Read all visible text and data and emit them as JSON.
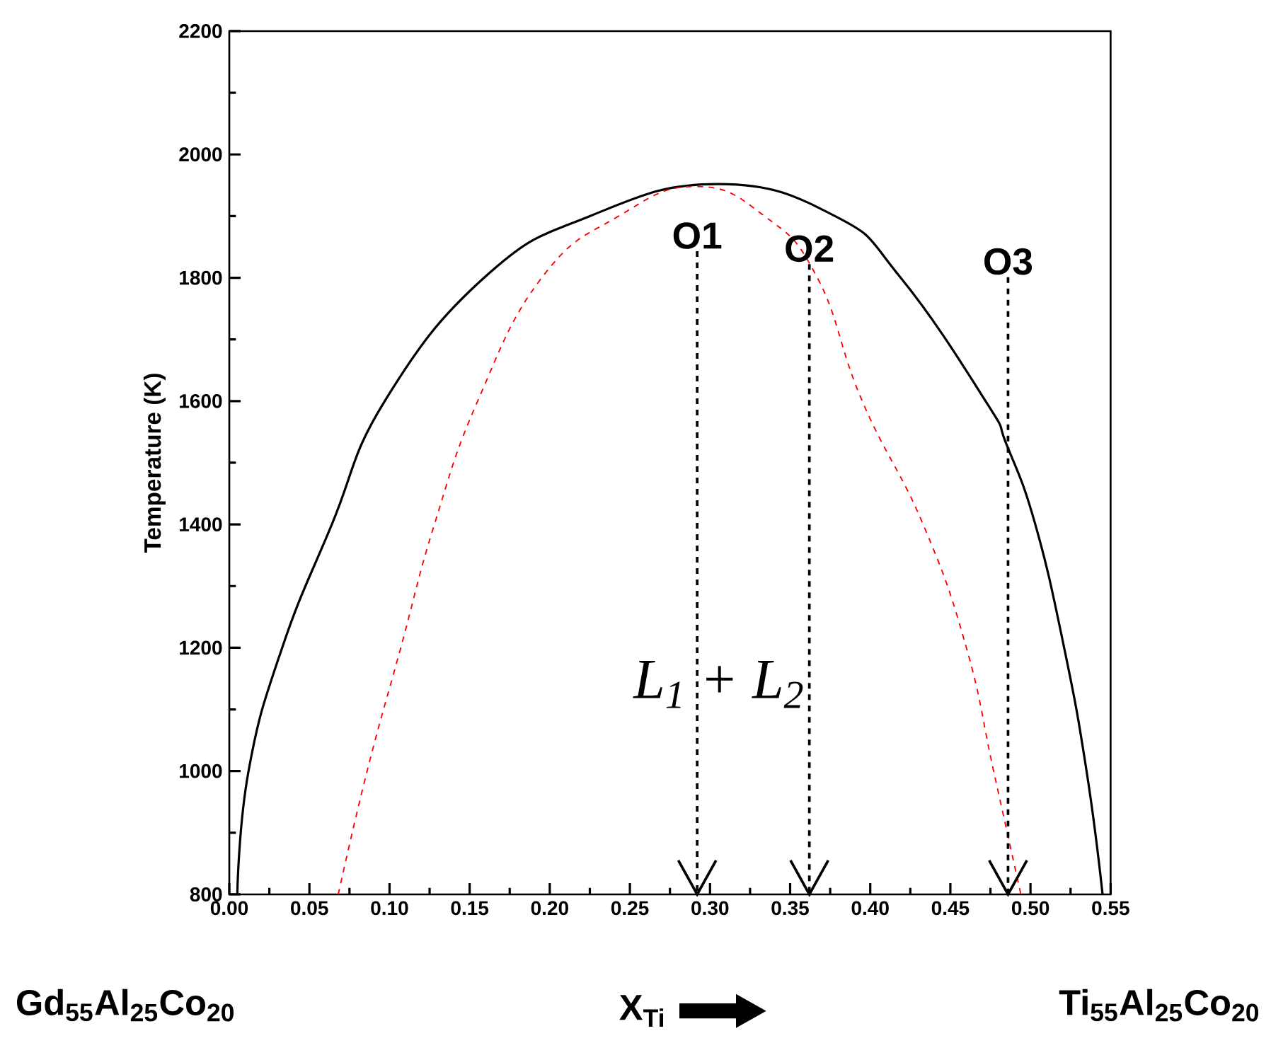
{
  "chart_data": {
    "type": "line",
    "xlabel": "X$_{Ti}$",
    "ylabel": "Temperature (K)",
    "xlim": [
      0,
      0.55
    ],
    "ylim": [
      800,
      2200
    ],
    "xticks": [
      {
        "value": 0,
        "label": "0.00"
      },
      {
        "value": 0.05,
        "label": "0.05"
      },
      {
        "value": 0.1,
        "label": "0.10"
      },
      {
        "value": 0.15,
        "label": "0.15"
      },
      {
        "value": 0.2,
        "label": "0.20"
      },
      {
        "value": 0.25,
        "label": "0.25"
      },
      {
        "value": 0.3,
        "label": "0.30"
      },
      {
        "value": 0.35,
        "label": "0.35"
      },
      {
        "value": 0.4,
        "label": "0.40"
      },
      {
        "value": 0.45,
        "label": "0.45"
      },
      {
        "value": 0.5,
        "label": "0.50"
      },
      {
        "value": 0.55,
        "label": "0.55"
      }
    ],
    "yticks": [
      800,
      1000,
      1200,
      1400,
      1600,
      1800,
      2000,
      2200
    ],
    "series": [
      {
        "color": "#000000",
        "line_style": "solid",
        "x": [
          0.005,
          0.012,
          0.033,
          0.064,
          0.097,
          0.159,
          0.225,
          0.305,
          0.378,
          0.419,
          0.472,
          0.485,
          0.503,
          0.521,
          0.535,
          0.545
        ],
        "values": [
          800,
          1000,
          1200,
          1400,
          1600,
          1800,
          1900,
          1952,
          1900,
          1800,
          1600,
          1530,
          1400,
          1200,
          1000,
          800
        ]
      },
      {
        "color": "#ff0000",
        "line_style": "dashed",
        "x": [
          0.068,
          0.086,
          0.107,
          0.128,
          0.155,
          0.195,
          0.243,
          0.291,
          0.334,
          0.367,
          0.395,
          0.433,
          0.46,
          0.477,
          0.494
        ],
        "values": [
          800,
          1000,
          1200,
          1400,
          1600,
          1800,
          1900,
          1948,
          1900,
          1800,
          1600,
          1400,
          1200,
          1000,
          800
        ]
      }
    ],
    "annotations": [
      "*L*$_{1}$ + *L*$_{2}$",
      "Gd$_{55}$Al$_{25}$Co$_{20}$",
      "Ti$_{55}$Al$_{25}$Co$_{20}$"
    ],
    "ref_lines": [
      {
        "axis": "x",
        "value": 0.292,
        "label": "O1",
        "line_style": "dashed",
        "color": "#000000"
      },
      {
        "axis": "x",
        "value": 0.362,
        "label": "O2",
        "line_style": "dashed",
        "color": "#000000"
      },
      {
        "axis": "x",
        "value": 0.486,
        "label": "O3",
        "line_style": "dashed",
        "color": "#000000"
      }
    ]
  }
}
